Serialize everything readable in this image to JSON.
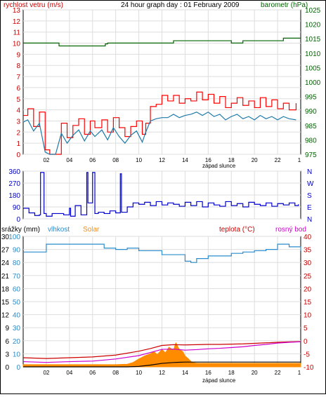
{
  "page": {
    "title": "24 hour graph day : 01 February 2009"
  },
  "chart_data": [
    {
      "type": "line",
      "name_label": "wind-baro-panel",
      "left_label": "rychlost vetru (m/s)",
      "right_label": "barometr (hPa)",
      "left_ylim": [
        0,
        13
      ],
      "left_ticks": [
        "0",
        "1",
        "2",
        "3",
        "4",
        "5",
        "6",
        "7",
        "8",
        "9",
        "10",
        "11",
        "12",
        "13"
      ],
      "right_ylim": [
        975,
        1025
      ],
      "right_ticks": [
        "975",
        "980",
        "985",
        "990",
        "995",
        "1000",
        "1005",
        "1010",
        "1015",
        "1020",
        "1025"
      ],
      "x_ticks": [
        "02",
        "04",
        "06",
        "08",
        "10",
        "12",
        "14",
        "16",
        "18",
        "20",
        "22"
      ],
      "sunset_label": "západ slunce",
      "colors": {
        "wind_gust": "#ff0000",
        "wind_avg": "#1e7aa8",
        "baro": "#006400"
      },
      "series": [
        {
          "key": "wind_gust",
          "x": [
            0,
            0.4,
            0.9,
            1.4,
            1.9,
            2.3,
            2.8,
            3.3,
            3.8,
            4.3,
            4.8,
            5.3,
            5.8,
            6.2,
            6.8,
            7.3,
            7.8,
            8.3,
            8.8,
            9.3,
            9.8,
            10.3,
            10.6,
            11,
            11.5,
            12,
            12.5,
            13,
            13.5,
            14,
            14.5,
            15,
            15.5,
            16,
            16.5,
            17,
            17.5,
            18,
            18.5,
            19,
            19.5,
            20,
            20.5,
            21,
            21.5,
            22,
            22.5,
            23,
            23.6
          ],
          "y": [
            3.5,
            4.1,
            2.5,
            3.8,
            0.4,
            0,
            0,
            2.8,
            1.5,
            2.6,
            3.2,
            1.8,
            3.0,
            2.4,
            3.1,
            2.0,
            3.3,
            2.4,
            1.6,
            2.5,
            3.0,
            1.8,
            2.8,
            4.3,
            4.5,
            5.3,
            4.8,
            5.3,
            4.6,
            5.0,
            4.8,
            5.6,
            4.9,
            5.4,
            4.6,
            5.2,
            4.2,
            4.6,
            5.1,
            4.4,
            4.8,
            4.2,
            5.1,
            4.3,
            4.9,
            4.1,
            4.6,
            4.0,
            4.6
          ]
        },
        {
          "key": "wind_avg",
          "x": [
            0,
            0.4,
            0.9,
            1.4,
            1.9,
            2.3,
            2.8,
            3.3,
            3.8,
            4.3,
            4.8,
            5.3,
            5.8,
            6.2,
            6.8,
            7.3,
            7.8,
            8.3,
            8.8,
            9.3,
            9.8,
            10.3,
            10.6,
            11,
            11.5,
            12,
            12.5,
            13,
            13.5,
            14,
            14.5,
            15,
            15.5,
            16,
            16.5,
            17,
            17.5,
            18,
            18.5,
            19,
            19.5,
            20,
            20.5,
            21,
            21.5,
            22,
            22.5,
            23,
            23.6
          ],
          "y": [
            2.9,
            3.1,
            2.1,
            2.8,
            0.2,
            0,
            0,
            1.9,
            1.0,
            1.7,
            2.2,
            1.2,
            2.1,
            1.6,
            2.2,
            1.3,
            2.4,
            1.6,
            1.0,
            1.7,
            2.1,
            1.1,
            2.0,
            3.0,
            3.2,
            3.3,
            3.3,
            3.6,
            3.3,
            3.5,
            3.6,
            3.8,
            3.5,
            3.8,
            3.4,
            3.6,
            3.1,
            3.4,
            3.6,
            3.2,
            3.4,
            3.1,
            3.5,
            3.2,
            3.4,
            3.1,
            3.4,
            3.2,
            3.1
          ]
        },
        {
          "key": "baro",
          "x": [
            0,
            3,
            3.1,
            6,
            7,
            7.1,
            7.3,
            12,
            13,
            15,
            16,
            17,
            18,
            19,
            20,
            21,
            22,
            22.5,
            23,
            23.5,
            24
          ],
          "y": [
            1013.5,
            1013.5,
            1012.5,
            1012.5,
            1012.5,
            1013.2,
            1013.5,
            1013.5,
            1014.3,
            1014.3,
            1014.3,
            1014.3,
            1013.5,
            1014.3,
            1014.3,
            1014.3,
            1014.3,
            1015.2,
            1015.2,
            1015.2,
            1015.2
          ]
        }
      ]
    },
    {
      "type": "line",
      "name_label": "wind-direction-panel",
      "left_ticks": [
        "0",
        "90",
        "180",
        "270",
        "360"
      ],
      "left_ylim": [
        0,
        360
      ],
      "right_ticks": [
        "N",
        "E",
        "S",
        "W",
        "N"
      ],
      "colors": {
        "dir": "#0000cc"
      },
      "series": [
        {
          "key": "dir",
          "x": [
            0,
            0.5,
            1.0,
            1.4,
            1.5,
            1.8,
            2.0,
            2.5,
            3.0,
            3.5,
            4.0,
            4.1,
            4.5,
            5.0,
            5.5,
            5.6,
            6.0,
            6.2,
            6.5,
            7.0,
            7.5,
            8.0,
            8.4,
            8.5,
            9.0,
            9.5,
            10,
            10.5,
            11,
            11.5,
            12,
            12.5,
            13,
            13.5,
            14,
            14.5,
            15,
            15.5,
            16,
            16.5,
            17,
            17.5,
            18,
            18.5,
            19,
            19.5,
            20,
            20.5,
            21,
            21.5,
            22,
            22.5,
            23,
            23.5,
            23.8
          ],
          "y": [
            80,
            45,
            25,
            30,
            350,
            40,
            20,
            40,
            40,
            30,
            80,
            20,
            100,
            30,
            350,
            120,
            350,
            40,
            50,
            40,
            60,
            45,
            340,
            50,
            90,
            120,
            110,
            125,
            100,
            130,
            105,
            120,
            110,
            95,
            125,
            100,
            130,
            90,
            120,
            105,
            95,
            130,
            100,
            115,
            90,
            125,
            110,
            100,
            120,
            95,
            115,
            105,
            120,
            100,
            110
          ]
        }
      ]
    },
    {
      "type": "line",
      "name_label": "rain-humidity-temp-panel",
      "labels": {
        "rain": "srážky (mm)",
        "hum": "vlhkost",
        "solar": "Solar",
        "temp": "teplota (°C)",
        "dew": "rosný bod"
      },
      "left_ticks": [
        "0",
        "3",
        "6",
        "9",
        "12",
        "15",
        "18",
        "21",
        "24",
        "27",
        "30"
      ],
      "left_ylim": [
        0,
        30
      ],
      "hum_ticks": [
        "0",
        "10",
        "20",
        "30",
        "40",
        "50",
        "60",
        "70",
        "80",
        "90",
        "100"
      ],
      "right_ticks": [
        "-10",
        "-5",
        "0",
        "5",
        "10",
        "15",
        "20",
        "25",
        "30",
        "35",
        "40"
      ],
      "right_ylim": [
        -10,
        40
      ],
      "colors": {
        "hum": "#2a8ccc",
        "temp": "#cc0000",
        "dew": "#cc00cc",
        "solar": "#ff8c00",
        "rain": "#000000"
      },
      "series": [
        {
          "key": "hum",
          "x": [
            0,
            2,
            4,
            6,
            7,
            8,
            9,
            10,
            11,
            12,
            13,
            14,
            14.5,
            15,
            16,
            17,
            18,
            19,
            20,
            21,
            22,
            22.5,
            23,
            24
          ],
          "y": [
            88,
            94,
            94,
            94,
            91,
            90,
            91,
            89,
            89,
            86,
            86,
            81,
            80,
            83,
            85,
            85,
            87,
            88,
            89,
            90,
            94,
            94,
            92,
            89
          ]
        },
        {
          "key": "temp",
          "x": [
            0,
            2,
            4,
            6,
            8,
            10,
            11,
            12,
            13,
            14,
            15,
            16,
            17,
            18,
            19,
            20,
            21,
            22,
            23,
            24
          ],
          "y": [
            -6.5,
            -6.8,
            -6.5,
            -6.2,
            -5.5,
            -4.0,
            -3.0,
            -1.8,
            -1.5,
            -1.6,
            -1.5,
            -1.4,
            -1.4,
            -1.3,
            -1.2,
            -1.0,
            -0.8,
            -0.6,
            -0.4,
            -0.3
          ]
        },
        {
          "key": "dew",
          "x": [
            0,
            2,
            4,
            6,
            8,
            10,
            11,
            12,
            13,
            14,
            15,
            16,
            17,
            18,
            19,
            20,
            21,
            22,
            23,
            24
          ],
          "y": [
            -8.0,
            -8.3,
            -8.0,
            -7.8,
            -7.0,
            -5.7,
            -4.5,
            -3.3,
            -3.2,
            -3.6,
            -3.4,
            -3.1,
            -2.9,
            -2.6,
            -2.3,
            -1.8,
            -1.4,
            -0.9,
            -0.6,
            -0.4
          ]
        },
        {
          "key": "rain",
          "x": [
            0,
            9,
            10,
            11,
            12,
            13,
            14,
            15,
            24
          ],
          "y": [
            0,
            0,
            0.1,
            0.4,
            0.8,
            1.0,
            1.1,
            1.1,
            1.1
          ]
        }
      ],
      "solar_x": [
        0,
        8,
        9,
        9.5,
        10,
        10.5,
        11,
        11.3,
        11.6,
        12,
        12.3,
        12.6,
        13,
        13.2,
        13.5,
        13.8,
        14,
        14.3,
        14.6,
        15,
        24
      ],
      "solar_y": [
        0.5,
        0.5,
        0.6,
        1.0,
        1.8,
        2.5,
        3.0,
        3.5,
        2.8,
        4.0,
        3.2,
        4.5,
        3.8,
        5.5,
        4.0,
        3.5,
        2.5,
        1.8,
        1.0,
        0.8,
        0.8
      ]
    }
  ]
}
